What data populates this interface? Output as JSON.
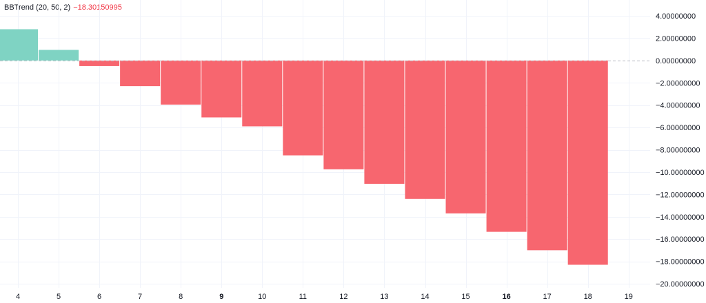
{
  "legend": {
    "name": "BBTrend (20, 50, 2)",
    "value": "−18.30150995"
  },
  "colors": {
    "positive": "#7fd3c3",
    "negative": "#f7666f",
    "grid": "#f0f3fa",
    "zero_line": "#b2b5be",
    "axis_text": "#131722",
    "value_text": "#f23645"
  },
  "chart_data": {
    "type": "bar",
    "categories": [
      "4",
      "5",
      "6",
      "7",
      "8",
      "9",
      "10",
      "11",
      "12",
      "13",
      "14",
      "15",
      "16",
      "17",
      "18"
    ],
    "x_ticks": [
      "4",
      "5",
      "6",
      "7",
      "8",
      "9",
      "10",
      "11",
      "12",
      "13",
      "14",
      "15",
      "16",
      "17",
      "18",
      "19"
    ],
    "bold_ticks": [
      "9",
      "16"
    ],
    "values": [
      2.8,
      0.95,
      -0.5,
      -2.3,
      -3.95,
      -5.1,
      -5.9,
      -8.5,
      -9.75,
      -11.05,
      -12.4,
      -13.7,
      -15.35,
      -17.0,
      -18.30150995
    ],
    "y_ticks": [
      "4.00000000",
      "2.00000000",
      "0.00000000",
      "−2.00000000",
      "−4.00000000",
      "−6.00000000",
      "−8.00000000",
      "−10.00000000",
      "−12.00000000",
      "−14.00000000",
      "−16.00000000",
      "−18.00000000",
      "−20.00000000"
    ],
    "ylim": [
      -20,
      4
    ],
    "grid": true,
    "title": "",
    "xlabel": "",
    "ylabel": ""
  }
}
